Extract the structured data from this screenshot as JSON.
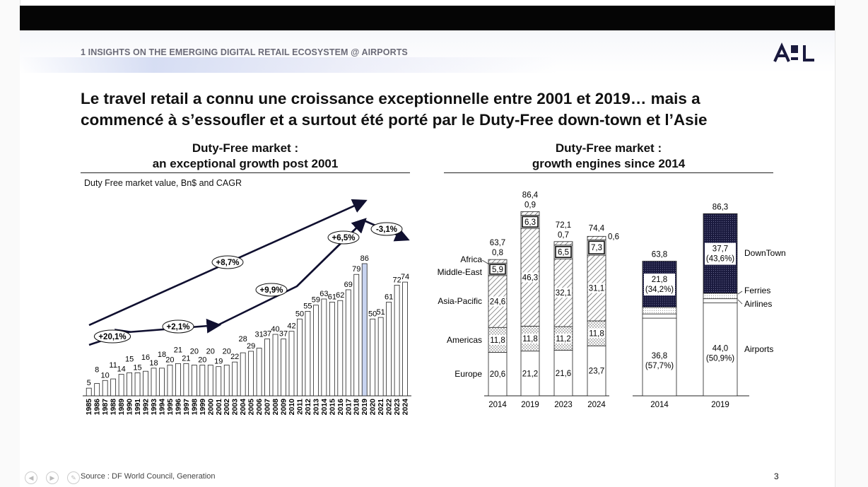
{
  "section_title": "1 INSIGHTS ON THE EMERGING DIGITAL RETAIL ECOSYSTEM @ AIRPORTS",
  "logo_text": "ADL",
  "headline_line1": "Le travel retail a connu une croissance exceptionnelle entre 2001 et 2019… mais a",
  "headline_line2": "commencé à s’essoufler et a surtout été porté par le Duty-Free down-town et l’Asie",
  "left_title_1": "Duty-Free market :",
  "left_title_2": "an exceptional growth post 2001",
  "right_title_1": "Duty-Free market :",
  "right_title_2": "growth engines since 2014",
  "left_note": "Duty Free market value, Bn$ and CAGR",
  "source": "Source : DF World Council, Generation",
  "page_number": "3",
  "colors": {
    "bar_highlight": "#c8d4f0",
    "dark": "#1a1a3e",
    "arrow": "#101030"
  },
  "chart_data": [
    {
      "type": "bar",
      "categories": [
        "1985",
        "1986",
        "1987",
        "1988",
        "1989",
        "1990",
        "1991",
        "1992",
        "1993",
        "1994",
        "1995",
        "1996",
        "1997",
        "1998",
        "1999",
        "2000",
        "2001",
        "2002",
        "2003",
        "2004",
        "2005",
        "2006",
        "2007",
        "2008",
        "2009",
        "2010",
        "2011",
        "2012",
        "2013",
        "2014",
        "2015",
        "2016",
        "2017",
        "2018",
        "2019",
        "2020",
        "2021",
        "2022",
        "2023",
        "2024"
      ],
      "values": [
        5,
        8,
        10,
        11,
        14,
        15,
        15,
        16,
        18,
        18,
        20,
        21,
        21,
        20,
        20,
        20,
        19,
        20,
        22,
        28,
        29,
        31,
        37,
        40,
        37,
        42,
        50,
        55,
        59,
        63,
        61,
        62,
        69,
        79,
        86,
        50,
        51,
        61,
        72,
        74
      ],
      "highlight": "2019",
      "cagr": [
        "+20,1%",
        "+2,1%",
        "+8,7%",
        "+9,9%",
        "+6,5%",
        "-3,1%"
      ]
    },
    {
      "type": "bar",
      "stacked": true,
      "categories": [
        "2014",
        "2019",
        "2023",
        "2024"
      ],
      "series": [
        {
          "name": "Europe",
          "values": [
            20.6,
            21.2,
            21.6,
            23.7
          ]
        },
        {
          "name": "Americas",
          "values": [
            11.8,
            11.8,
            11.2,
            11.8
          ]
        },
        {
          "name": "Asia-Pacific",
          "values": [
            24.6,
            46.3,
            32.1,
            31.1
          ]
        },
        {
          "name": "Middle-East",
          "values": [
            5.9,
            6.3,
            6.5,
            7.3
          ]
        },
        {
          "name": "Africa",
          "values": [
            0.8,
            0.9,
            0.7,
            0.6
          ]
        }
      ],
      "totals": [
        63.7,
        86.4,
        72.1,
        74.4
      ],
      "labels": {
        "series": [
          "Europe",
          "Americas",
          "Asia-Pacific",
          "Middle-East",
          "Africa"
        ],
        "totals": [
          "63,7",
          "86,4",
          "72,1",
          "74,4"
        ],
        "cells": [
          [
            "20,6",
            "11,8",
            "24,6",
            "5,9",
            "0,8"
          ],
          [
            "21,2",
            "11,8",
            "46,3",
            "6,3",
            "0,9"
          ],
          [
            "21,6",
            "11,2",
            "32,1",
            "6,5",
            "0,7"
          ],
          [
            "23,7",
            "11,8",
            "31,1",
            "7,3",
            "0,6"
          ]
        ]
      }
    },
    {
      "type": "bar",
      "stacked": true,
      "categories": [
        "2014",
        "2019"
      ],
      "series": [
        {
          "name": "Airports",
          "values": [
            36.8,
            44.0
          ]
        },
        {
          "name": "Airlines",
          "values": [
            2.0,
            2.0
          ]
        },
        {
          "name": "Ferries",
          "values": [
            3.2,
            2.6
          ]
        },
        {
          "name": "DownTown",
          "values": [
            21.8,
            37.7
          ]
        }
      ],
      "totals": [
        63.8,
        86.3
      ],
      "labels": {
        "series": [
          "Airports",
          "Airlines",
          "Ferries",
          "DownTown"
        ],
        "totals": [
          "63,8",
          "86,3"
        ],
        "airports": [
          "36,8",
          "(57,7%)",
          "44,0",
          "(50,9%)"
        ],
        "downtown": [
          "21,8",
          "(34,2%)",
          "37,7",
          "(43,6%)"
        ]
      }
    }
  ]
}
